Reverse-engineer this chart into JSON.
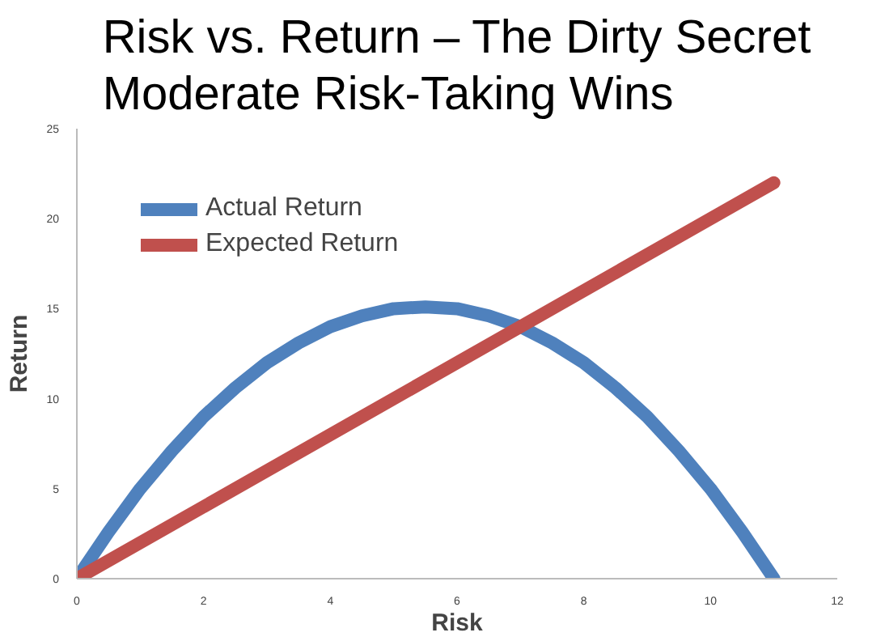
{
  "chart_data": {
    "type": "line",
    "title": "Risk vs. Return – The Dirty Secret\nModerate Risk-Taking Wins",
    "xlabel": "Risk",
    "ylabel": "Return",
    "series": [
      {
        "name": "Actual Return",
        "color": "#4f81bd",
        "x": [
          0,
          0.5,
          1,
          1.5,
          2,
          2.5,
          3,
          3.5,
          4,
          4.5,
          5,
          5.5,
          6,
          6.5,
          7,
          7.5,
          8,
          8.5,
          9,
          9.5,
          10,
          10.5,
          11
        ],
        "values": [
          0,
          2.6,
          5,
          7.1,
          9,
          10.6,
          12,
          13.1,
          14,
          14.6,
          15,
          15.1,
          15,
          14.6,
          14,
          13.1,
          12,
          10.6,
          9,
          7.1,
          5,
          2.6,
          0
        ]
      },
      {
        "name": "Expected Return",
        "color": "#c0504d",
        "x": [
          0,
          11
        ],
        "values": [
          0,
          22
        ]
      }
    ],
    "xlim": [
      0,
      12
    ],
    "ylim": [
      0,
      25
    ],
    "xticks": [
      0,
      2,
      4,
      6,
      8,
      10,
      12
    ],
    "yticks": [
      0,
      5,
      10,
      15,
      20,
      25
    ],
    "grid": false,
    "legend": "top left",
    "marker": "none",
    "line_style": "solid"
  }
}
